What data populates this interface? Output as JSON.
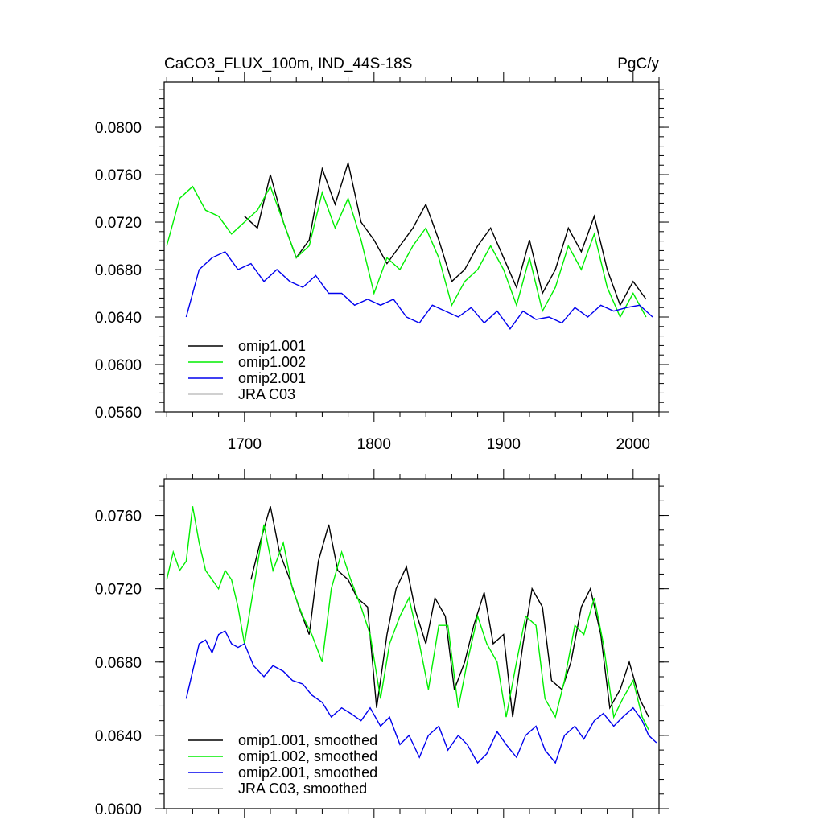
{
  "header": {
    "left_title": "CaCO3_FLUX_100m, IND_44S-18S",
    "right_title": "PgC/y"
  },
  "colors": {
    "omip1.001": "#000000",
    "omip1.002": "#00ee00",
    "omip2.001": "#0000ee",
    "JRA C03": "#c0c0c0"
  },
  "chart_data": [
    {
      "type": "line",
      "title": "CaCO3_FLUX_100m, IND_44S-18S",
      "units": "PgC/y",
      "xlim": [
        1638,
        2020
      ],
      "ylim": [
        0.056,
        0.0838
      ],
      "x_ticks": [
        1700,
        1800,
        1900,
        2000
      ],
      "x_tick_labels": [
        "1700",
        "1800",
        "1900",
        "2000"
      ],
      "y_ticks": [
        0.056,
        0.06,
        0.064,
        0.068,
        0.072,
        0.076,
        0.08
      ],
      "y_tick_labels": [
        "0.0560",
        "0.0600",
        "0.0640",
        "0.0680",
        "0.0720",
        "0.0760",
        "0.0800"
      ],
      "legend": {
        "location": "bottom-left",
        "entries": [
          "omip1.001",
          "omip1.002",
          "omip2.001",
          "JRA C03"
        ]
      },
      "series": [
        {
          "name": "omip1.001",
          "color": "#000000",
          "x": [
            1700,
            1710,
            1720,
            1730,
            1740,
            1750,
            1760,
            1770,
            1780,
            1790,
            1800,
            1810,
            1820,
            1830,
            1840,
            1850,
            1860,
            1870,
            1880,
            1890,
            1900,
            1910,
            1920,
            1930,
            1940,
            1950,
            1960,
            1970,
            1980,
            1990,
            2000,
            2010
          ],
          "y": [
            0.0725,
            0.0715,
            0.076,
            0.072,
            0.069,
            0.0705,
            0.0765,
            0.0735,
            0.077,
            0.072,
            0.0705,
            0.0685,
            0.07,
            0.0715,
            0.0735,
            0.0705,
            0.067,
            0.068,
            0.07,
            0.0715,
            0.069,
            0.0665,
            0.0705,
            0.066,
            0.068,
            0.0715,
            0.0695,
            0.0725,
            0.068,
            0.065,
            0.067,
            0.0655
          ]
        },
        {
          "name": "omip1.002",
          "color": "#00ee00",
          "x": [
            1640,
            1650,
            1660,
            1670,
            1680,
            1690,
            1700,
            1710,
            1720,
            1730,
            1740,
            1750,
            1760,
            1770,
            1780,
            1790,
            1800,
            1810,
            1820,
            1830,
            1840,
            1850,
            1860,
            1870,
            1880,
            1890,
            1900,
            1910,
            1920,
            1930,
            1940,
            1950,
            1960,
            1970,
            1980,
            1990,
            2000,
            2010
          ],
          "y": [
            0.07,
            0.074,
            0.075,
            0.073,
            0.0725,
            0.071,
            0.072,
            0.073,
            0.075,
            0.072,
            0.069,
            0.07,
            0.0745,
            0.0715,
            0.074,
            0.0705,
            0.066,
            0.069,
            0.068,
            0.07,
            0.0715,
            0.069,
            0.065,
            0.067,
            0.068,
            0.07,
            0.068,
            0.065,
            0.069,
            0.0645,
            0.0665,
            0.07,
            0.068,
            0.071,
            0.0665,
            0.064,
            0.066,
            0.064
          ]
        },
        {
          "name": "omip2.001",
          "color": "#0000ee",
          "x": [
            1655,
            1665,
            1675,
            1685,
            1695,
            1705,
            1715,
            1725,
            1735,
            1745,
            1755,
            1765,
            1775,
            1785,
            1795,
            1805,
            1815,
            1825,
            1835,
            1845,
            1855,
            1865,
            1875,
            1885,
            1895,
            1905,
            1915,
            1925,
            1935,
            1945,
            1955,
            1965,
            1975,
            1985,
            1995,
            2005,
            2015
          ],
          "y": [
            0.064,
            0.068,
            0.069,
            0.0695,
            0.068,
            0.0685,
            0.067,
            0.068,
            0.067,
            0.0665,
            0.0675,
            0.066,
            0.066,
            0.065,
            0.0655,
            0.065,
            0.0655,
            0.064,
            0.0635,
            0.065,
            0.0645,
            0.064,
            0.0648,
            0.0635,
            0.0645,
            0.063,
            0.0645,
            0.0638,
            0.064,
            0.0635,
            0.0648,
            0.064,
            0.065,
            0.0645,
            0.0648,
            0.065,
            0.064
          ]
        },
        {
          "name": "JRA C03",
          "color": "#c0c0c0",
          "x": [],
          "y": []
        }
      ]
    },
    {
      "type": "line",
      "title": "",
      "xlim": [
        1638,
        2020
      ],
      "ylim": [
        0.06,
        0.078
      ],
      "x_ticks": [
        1700,
        1800,
        1900,
        2000
      ],
      "x_tick_labels": [],
      "y_ticks": [
        0.06,
        0.064,
        0.068,
        0.072,
        0.076
      ],
      "y_tick_labels": [
        "0.0600",
        "0.0640",
        "0.0680",
        "0.0720",
        "0.0760"
      ],
      "legend": {
        "location": "bottom-left",
        "entries": [
          "omip1.001, smoothed",
          "omip1.002, smoothed",
          "omip2.001, smoothed",
          "JRA C03, smoothed"
        ]
      },
      "series": [
        {
          "name": "omip1.001, smoothed",
          "color": "#000000",
          "x": [
            1705,
            1712,
            1720,
            1727,
            1735,
            1742,
            1750,
            1757,
            1765,
            1772,
            1780,
            1787,
            1795,
            1802,
            1810,
            1817,
            1825,
            1832,
            1840,
            1847,
            1855,
            1862,
            1870,
            1877,
            1885,
            1892,
            1900,
            1907,
            1915,
            1922,
            1930,
            1937,
            1945,
            1952,
            1960,
            1967,
            1975,
            1982,
            1990,
            1997,
            2005,
            2012
          ],
          "y": [
            0.0725,
            0.0745,
            0.0765,
            0.074,
            0.0725,
            0.071,
            0.0695,
            0.0735,
            0.0755,
            0.073,
            0.0725,
            0.0715,
            0.071,
            0.0655,
            0.0695,
            0.072,
            0.0732,
            0.0708,
            0.069,
            0.0715,
            0.0705,
            0.0665,
            0.068,
            0.07,
            0.0718,
            0.069,
            0.0695,
            0.065,
            0.069,
            0.072,
            0.071,
            0.067,
            0.0665,
            0.068,
            0.071,
            0.072,
            0.0695,
            0.0655,
            0.0665,
            0.068,
            0.066,
            0.065
          ]
        },
        {
          "name": "omip1.002, smoothed",
          "color": "#00ee00",
          "x": [
            1640,
            1645,
            1650,
            1655,
            1660,
            1665,
            1670,
            1675,
            1680,
            1685,
            1690,
            1695,
            1700,
            1707,
            1715,
            1722,
            1730,
            1737,
            1745,
            1752,
            1760,
            1767,
            1775,
            1782,
            1790,
            1797,
            1805,
            1812,
            1820,
            1827,
            1835,
            1842,
            1850,
            1857,
            1865,
            1872,
            1880,
            1887,
            1895,
            1902,
            1910,
            1917,
            1925,
            1932,
            1940,
            1947,
            1955,
            1962,
            1970,
            1977,
            1985,
            1992,
            2000,
            2007,
            2012
          ],
          "y": [
            0.0725,
            0.074,
            0.073,
            0.0735,
            0.0765,
            0.0745,
            0.073,
            0.0725,
            0.072,
            0.073,
            0.0725,
            0.071,
            0.069,
            0.072,
            0.0755,
            0.073,
            0.0745,
            0.072,
            0.0705,
            0.0695,
            0.068,
            0.072,
            0.074,
            0.0725,
            0.071,
            0.0695,
            0.066,
            0.069,
            0.0705,
            0.0715,
            0.069,
            0.0665,
            0.07,
            0.07,
            0.0655,
            0.068,
            0.0705,
            0.069,
            0.068,
            0.065,
            0.068,
            0.0705,
            0.07,
            0.066,
            0.065,
            0.067,
            0.07,
            0.0695,
            0.0715,
            0.069,
            0.065,
            0.066,
            0.067,
            0.065,
            0.0643
          ]
        },
        {
          "name": "omip2.001, smoothed",
          "color": "#0000ee",
          "x": [
            1655,
            1660,
            1665,
            1670,
            1675,
            1680,
            1685,
            1690,
            1695,
            1700,
            1707,
            1715,
            1722,
            1730,
            1737,
            1745,
            1752,
            1760,
            1767,
            1775,
            1782,
            1790,
            1797,
            1805,
            1812,
            1820,
            1827,
            1835,
            1842,
            1850,
            1857,
            1865,
            1872,
            1880,
            1887,
            1895,
            1902,
            1910,
            1917,
            1925,
            1932,
            1940,
            1947,
            1955,
            1962,
            1970,
            1977,
            1985,
            1992,
            2000,
            2007,
            2012,
            2018
          ],
          "y": [
            0.066,
            0.0675,
            0.069,
            0.0692,
            0.0685,
            0.0695,
            0.0697,
            0.069,
            0.0688,
            0.069,
            0.0678,
            0.0672,
            0.0678,
            0.0675,
            0.067,
            0.0668,
            0.0662,
            0.0658,
            0.065,
            0.0655,
            0.0652,
            0.0648,
            0.0655,
            0.0645,
            0.065,
            0.0635,
            0.064,
            0.0628,
            0.064,
            0.0645,
            0.0632,
            0.064,
            0.0635,
            0.0625,
            0.063,
            0.0642,
            0.0635,
            0.0628,
            0.064,
            0.0645,
            0.0632,
            0.0625,
            0.064,
            0.0645,
            0.0638,
            0.0648,
            0.0652,
            0.0645,
            0.065,
            0.0655,
            0.0648,
            0.064,
            0.0636
          ]
        },
        {
          "name": "JRA C03, smoothed",
          "color": "#c0c0c0",
          "x": [],
          "y": []
        }
      ]
    }
  ]
}
